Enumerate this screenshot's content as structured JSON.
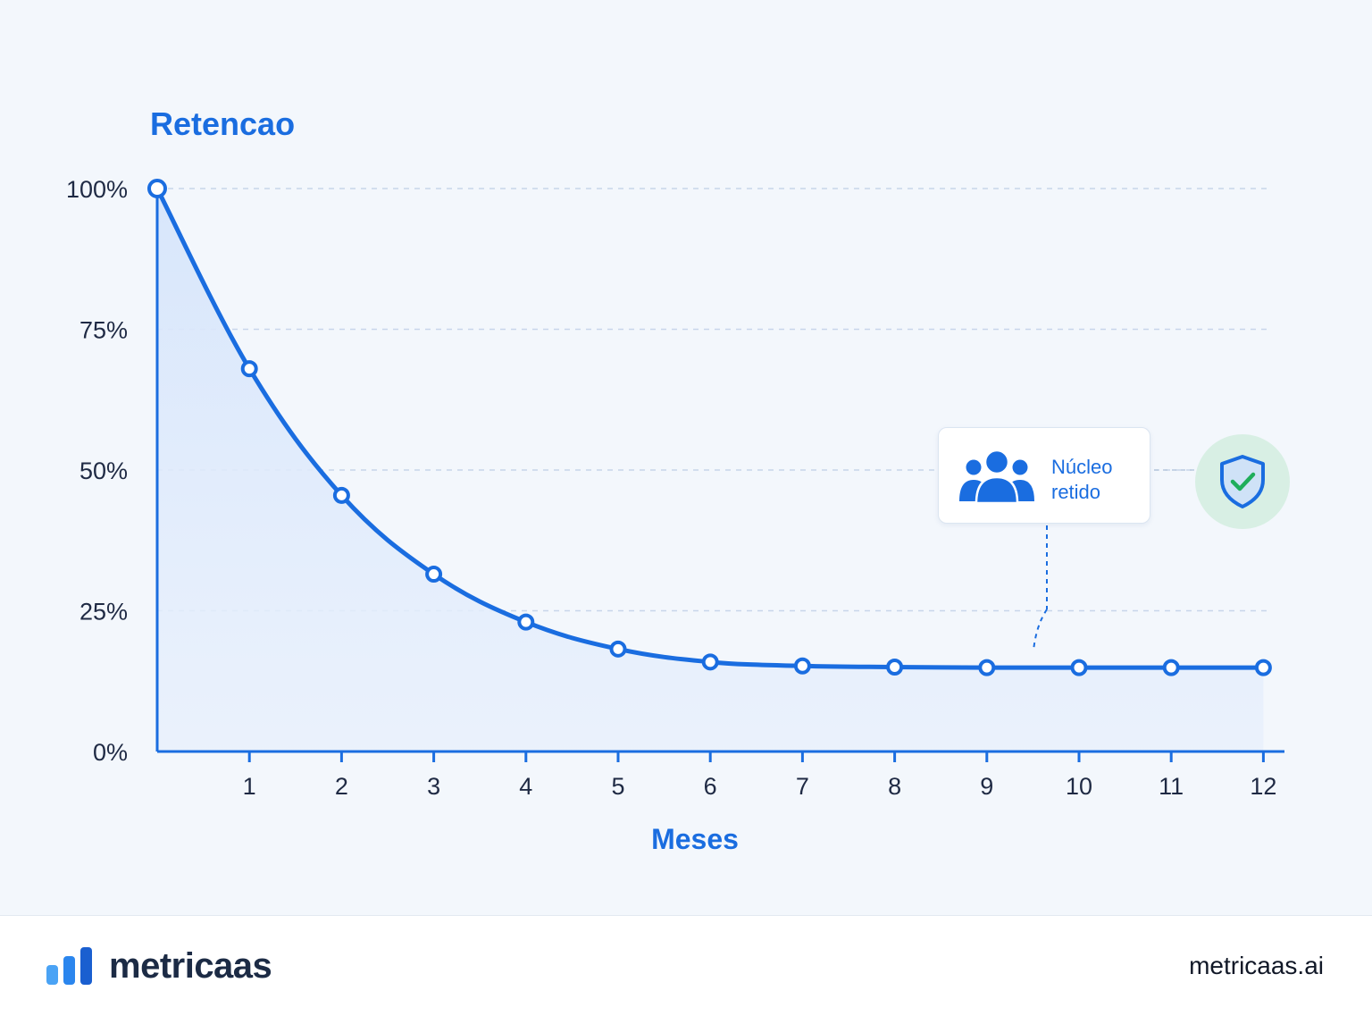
{
  "chart_data": {
    "type": "line",
    "title": "Retencao",
    "xlabel": "Meses",
    "ylabel": "",
    "x": [
      0,
      1,
      2,
      3,
      4,
      5,
      6,
      7,
      8,
      9,
      10,
      11,
      12
    ],
    "x_ticks": [
      "1",
      "2",
      "3",
      "4",
      "5",
      "6",
      "7",
      "8",
      "9",
      "10",
      "11",
      "12"
    ],
    "y_ticks": [
      "100%",
      "75%",
      "50%",
      "25%",
      "0%"
    ],
    "series": [
      {
        "values": [
          100,
          68,
          45.5,
          31.5,
          23,
          18.2,
          15.9,
          15.2,
          15,
          14.9,
          14.9,
          14.9,
          14.9
        ]
      }
    ],
    "ylim": [
      0,
      100
    ],
    "xlim": [
      0,
      12
    ],
    "grid": true,
    "fill_under": true,
    "color": "#1a6de0"
  },
  "annotation": {
    "text_line1": "Núcleo",
    "text_line2": "retido",
    "icon": "users-group-icon",
    "badge_icon": "shield-check-icon",
    "badge_color": "#1fae5b"
  },
  "footer": {
    "brand": "metricaas",
    "website": "metricaas.ai",
    "logo_icon": "bar-chart-logo-icon"
  }
}
